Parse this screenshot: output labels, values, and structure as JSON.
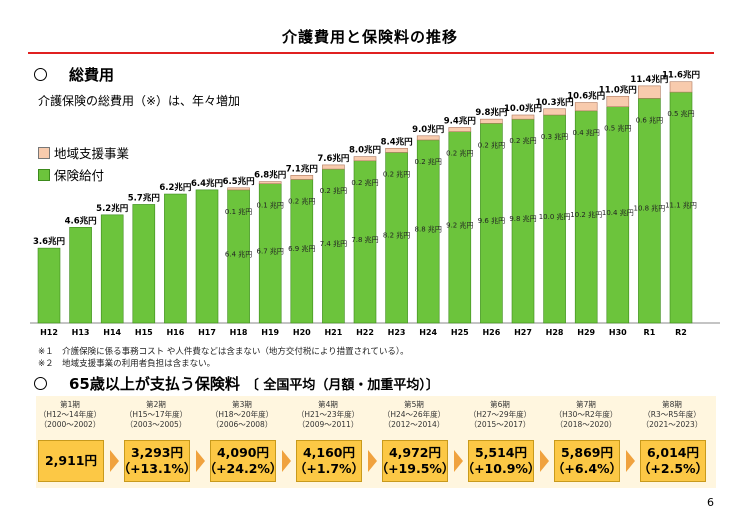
{
  "page_title": "介護費用と保険料の推移",
  "section1": {
    "marker": "○",
    "title": "総費用",
    "subtitle": "介護保険の総費用（※）は、年々増加"
  },
  "legend": [
    {
      "label": "地域支援事業",
      "color": "#f8cbad"
    },
    {
      "label": "保険給付",
      "color": "#6cc43c"
    }
  ],
  "notes": [
    "※１　介護保険に係る事務コスト や人件費などは含まない（地方交付税により措置されている）。",
    "※２　地域支援事業の利用者負担は含まない。"
  ],
  "chart_data": {
    "type": "bar",
    "stacked": true,
    "title": "総費用",
    "ylim": [
      0,
      12
    ],
    "categories": [
      "H12",
      "H13",
      "H14",
      "H15",
      "H16",
      "H17",
      "H18",
      "H19",
      "H20",
      "H21",
      "H22",
      "H23",
      "H24",
      "H25",
      "H26",
      "H27",
      "H28",
      "H29",
      "H30",
      "R1",
      "R2"
    ],
    "totals": [
      3.6,
      4.6,
      5.2,
      5.7,
      6.2,
      6.4,
      6.5,
      6.8,
      7.1,
      7.6,
      8.0,
      8.4,
      9.0,
      9.4,
      9.8,
      10.0,
      10.3,
      10.6,
      11.0,
      11.4,
      11.6
    ],
    "total_labels": [
      "3.6兆円",
      "4.6兆円",
      "5.2兆円",
      "5.7兆円",
      "6.2兆円",
      "6.4兆円",
      "6.5兆円",
      "6.8兆円",
      "7.1兆円",
      "7.6兆円",
      "8.0兆円",
      "8.4兆円",
      "9.0兆円",
      "9.4兆円",
      "9.8兆円",
      "10.0兆円",
      "10.3兆円",
      "10.6兆円",
      "11.0兆円",
      "11.4兆円",
      "11.6兆円"
    ],
    "series": [
      {
        "name": "保険給付",
        "color": "#6cc43c",
        "values": [
          3.6,
          4.6,
          5.2,
          5.7,
          6.2,
          6.4,
          6.4,
          6.7,
          6.9,
          7.4,
          7.8,
          8.2,
          8.8,
          9.2,
          9.6,
          9.8,
          10.0,
          10.2,
          10.4,
          10.8,
          11.1
        ],
        "labels": [
          null,
          null,
          null,
          null,
          null,
          null,
          "6.4 兆円",
          "6.7 兆円",
          "6.9 兆円",
          "7.4 兆円",
          "7.8 兆円",
          "8.2 兆円",
          "8.8 兆円",
          "9.2 兆円",
          "9.6 兆円",
          "9.8 兆円",
          "10.0 兆円",
          "10.2 兆円",
          "10.4 兆円",
          "10.8 兆円",
          "11.1 兆円"
        ]
      },
      {
        "name": "地域支援事業",
        "color": "#f8cbad",
        "values": [
          0,
          0,
          0,
          0,
          0,
          0,
          0.1,
          0.1,
          0.2,
          0.2,
          0.2,
          0.2,
          0.2,
          0.2,
          0.2,
          0.2,
          0.3,
          0.4,
          0.5,
          0.6,
          0.5
        ],
        "labels": [
          null,
          null,
          null,
          null,
          null,
          null,
          "0.1 兆円",
          "0.1 兆円",
          "0.2 兆円",
          "0.2 兆円",
          "0.2 兆円",
          "0.2 兆円",
          "0.2 兆円",
          "0.2 兆円",
          "0.2 兆円",
          "0.2 兆円",
          "0.3 兆円",
          "0.4 兆円",
          "0.5 兆円",
          "0.6 兆円",
          "0.5 兆円"
        ]
      }
    ]
  },
  "section2": {
    "marker": "○",
    "title": "65歳以上が支払う保険料",
    "note": "〔 全国平均（月額・加重平均）〕"
  },
  "premiums": [
    {
      "period": "第1期",
      "years": "（H12～14年度）",
      "range": "（2000～2002）",
      "amount": "2,911円",
      "change": ""
    },
    {
      "period": "第2期",
      "years": "（H15～17年度）",
      "range": "（2003～2005）",
      "amount": "3,293円",
      "change": "（+13.1%）"
    },
    {
      "period": "第3期",
      "years": "（H18～20年度）",
      "range": "（2006～2008）",
      "amount": "4,090円",
      "change": "（+24.2%）"
    },
    {
      "period": "第4期",
      "years": "（H21～23年度）",
      "range": "（2009～2011）",
      "amount": "4,160円",
      "change": "（+1.7%）"
    },
    {
      "period": "第5期",
      "years": "（H24～26年度）",
      "range": "（2012～2014）",
      "amount": "4,972円",
      "change": "（+19.5%）"
    },
    {
      "period": "第6期",
      "years": "（H27～29年度）",
      "range": "（2015～2017）",
      "amount": "5,514円",
      "change": "（+10.9%）"
    },
    {
      "period": "第7期",
      "years": "（H30～R2年度）",
      "range": "（2018～2020）",
      "amount": "5,869円",
      "change": "（+6.4%）"
    },
    {
      "period": "第8期",
      "years": "（R3～R5年度）",
      "range": "（2021～2023）",
      "amount": "6,014円",
      "change": "（+2.5%）"
    }
  ],
  "page_number": "6"
}
